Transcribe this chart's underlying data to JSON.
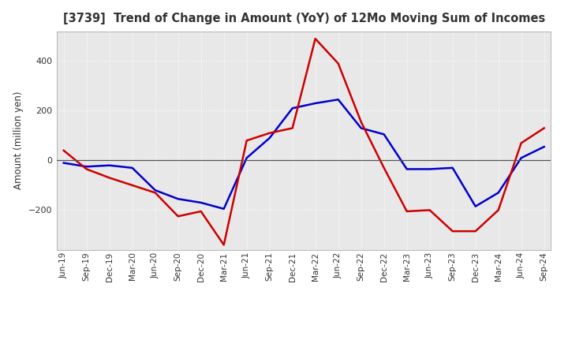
{
  "title": "[3739]  Trend of Change in Amount (YoY) of 12Mo Moving Sum of Incomes",
  "ylabel": "Amount (million yen)",
  "x_labels": [
    "Jun-19",
    "Sep-19",
    "Dec-19",
    "Mar-20",
    "Jun-20",
    "Sep-20",
    "Dec-20",
    "Mar-21",
    "Jun-21",
    "Sep-21",
    "Dec-21",
    "Mar-22",
    "Jun-22",
    "Sep-22",
    "Dec-22",
    "Mar-23",
    "Jun-23",
    "Sep-23",
    "Dec-23",
    "Mar-24",
    "Jun-24",
    "Sep-24"
  ],
  "ordinary_income": [
    -10,
    -25,
    -20,
    -30,
    -120,
    -155,
    -170,
    -195,
    10,
    90,
    210,
    230,
    245,
    130,
    105,
    -35,
    -35,
    -30,
    -185,
    -130,
    10,
    55
  ],
  "net_income": [
    40,
    -35,
    -70,
    -100,
    -130,
    -225,
    -205,
    -340,
    80,
    110,
    130,
    490,
    390,
    155,
    -30,
    -205,
    -200,
    -285,
    -285,
    -200,
    70,
    130
  ],
  "ordinary_color": "#0000cc",
  "net_color": "#cc0000",
  "ylim_min": -360,
  "ylim_max": 520,
  "yticks": [
    -200,
    0,
    200,
    400
  ],
  "plot_bg_color": "#e8e8e8",
  "figure_bg_color": "#ffffff",
  "grid_color": "#ffffff",
  "title_color": "#333333"
}
